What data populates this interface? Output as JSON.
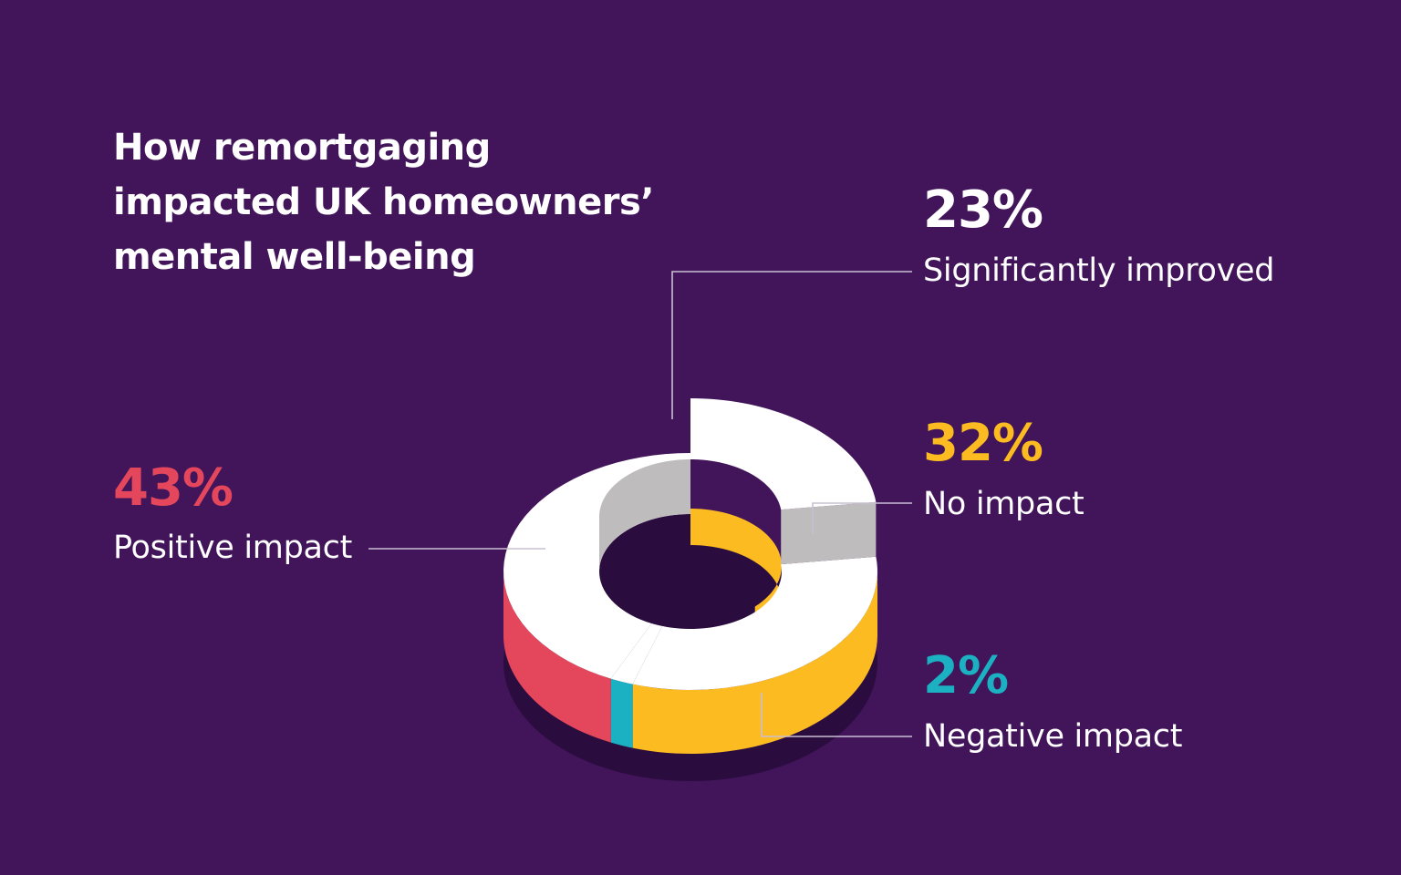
{
  "title_lines": [
    "How remortgaging",
    "impacted UK homeowners’",
    "mental well-being"
  ],
  "colors": {
    "background": "#42145a",
    "significantly_improved": "#ffffff",
    "positive_impact": "#e4475c",
    "no_impact": "#fbbb21",
    "negative_impact": "#1bb1c2",
    "shadow": "#2a0c3f",
    "inner_wall": "#bebcbd",
    "leader_line": "#c9bfd2"
  },
  "chart_data": {
    "type": "pie",
    "title": "How remortgaging impacted UK homeowners’ mental well-being",
    "style": "3d-donut-stacked",
    "categories": [
      "Significantly improved",
      "No impact",
      "Negative impact",
      "Positive impact"
    ],
    "values": [
      23,
      32,
      2,
      43
    ],
    "unit": "%",
    "labels": [
      {
        "pct": "23%",
        "text": "Significantly improved",
        "color": "#ffffff"
      },
      {
        "pct": "32%",
        "text": "No impact",
        "color": "#fbbb21"
      },
      {
        "pct": "2%",
        "text": "Negative impact",
        "color": "#1bb1c2"
      },
      {
        "pct": "43%",
        "text": "Positive impact",
        "color": "#e4475c"
      }
    ]
  }
}
